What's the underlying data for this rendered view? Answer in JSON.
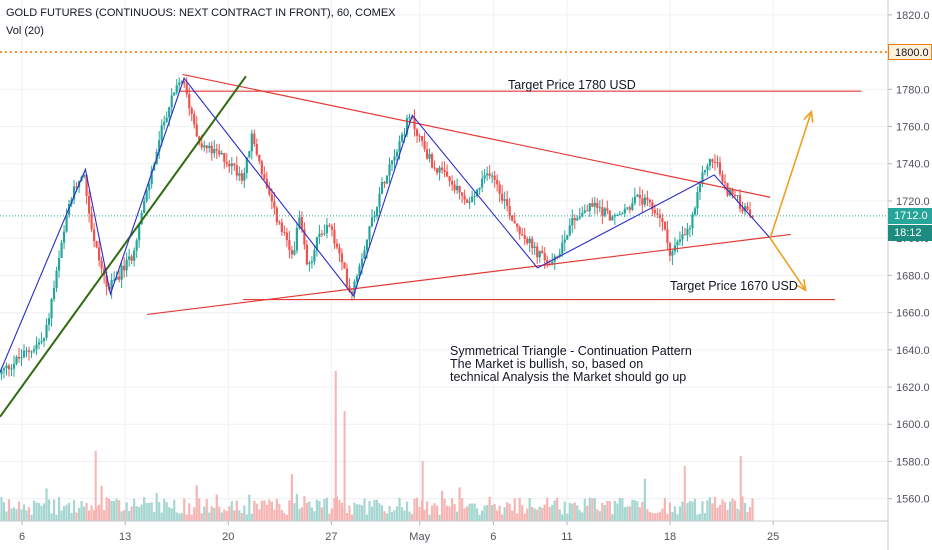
{
  "header": {
    "title": "GOLD FUTURES (CONTINUOUS: NEXT CONTRACT IN FRONT), 60, COMEX",
    "volume_label": "Vol (20)"
  },
  "annotations": {
    "target_high": "Target Price 1780 USD",
    "target_low": "Target Price 1670 USD",
    "pattern_lines": [
      "Symmetrical Triangle - Continuation Pattern",
      "The Market is bullish, so, based on",
      "technical Analysis the Market should go up"
    ]
  },
  "price_badges": {
    "alert_level": "1800.0",
    "last_price": "1712.0",
    "countdown": "18:12"
  },
  "colors": {
    "up": "#26a69a",
    "down": "#ef5350",
    "trend_red": "#e53935",
    "zigzag_blue": "#2b2bc8",
    "support_green": "#2e6b0f",
    "forecast_orange": "#f0a020",
    "alert_orange": "#f57c00",
    "last_price_teal": "#26a69a",
    "countdown_teal": "#1d8b80"
  },
  "chart_data": {
    "type": "candlestick",
    "timeframe": "60",
    "y_axis_ticks": [
      1560,
      1580,
      1600,
      1620,
      1640,
      1660,
      1680,
      1700,
      1720,
      1740,
      1760,
      1780,
      1800,
      1820
    ],
    "ylim": [
      1548,
      1828
    ],
    "x_axis_ticks": [
      "6",
      "13",
      "20",
      "27",
      "May",
      "6",
      "11",
      "18",
      "25"
    ],
    "x_ticks_day_offset": [
      -1,
      6,
      13,
      20,
      26,
      31,
      36,
      43,
      50
    ],
    "x_domain_days": [
      -2.5,
      57.8
    ],
    "alert_level": 1800,
    "last_price": 1712,
    "price_path": [
      {
        "day": -2.4,
        "price": 1627
      },
      {
        "day": 0.7,
        "price": 1646
      },
      {
        "day": 2.4,
        "price": 1719
      },
      {
        "day": 3.3,
        "price": 1737
      },
      {
        "day": 4.0,
        "price": 1700
      },
      {
        "day": 5.0,
        "price": 1672
      },
      {
        "day": 6.6,
        "price": 1690
      },
      {
        "day": 7.6,
        "price": 1723
      },
      {
        "day": 8.9,
        "price": 1766
      },
      {
        "day": 10.0,
        "price": 1786
      },
      {
        "day": 11.3,
        "price": 1750
      },
      {
        "day": 12.9,
        "price": 1743
      },
      {
        "day": 14.2,
        "price": 1733
      },
      {
        "day": 14.8,
        "price": 1755
      },
      {
        "day": 16.0,
        "price": 1720
      },
      {
        "day": 17.5,
        "price": 1690
      },
      {
        "day": 18.0,
        "price": 1710
      },
      {
        "day": 18.6,
        "price": 1682
      },
      {
        "day": 19.3,
        "price": 1701
      },
      {
        "day": 20.0,
        "price": 1708
      },
      {
        "day": 20.8,
        "price": 1688
      },
      {
        "day": 21.5,
        "price": 1670
      },
      {
        "day": 23.0,
        "price": 1712
      },
      {
        "day": 24.0,
        "price": 1738
      },
      {
        "day": 25.5,
        "price": 1765
      },
      {
        "day": 27.0,
        "price": 1740
      },
      {
        "day": 28.2,
        "price": 1730
      },
      {
        "day": 29.5,
        "price": 1718
      },
      {
        "day": 31.0,
        "price": 1737
      },
      {
        "day": 32.5,
        "price": 1710
      },
      {
        "day": 34.0,
        "price": 1693
      },
      {
        "day": 35.2,
        "price": 1685
      },
      {
        "day": 36.5,
        "price": 1710
      },
      {
        "day": 38.0,
        "price": 1718
      },
      {
        "day": 39.5,
        "price": 1710
      },
      {
        "day": 41.0,
        "price": 1722
      },
      {
        "day": 42.5,
        "price": 1712
      },
      {
        "day": 43.2,
        "price": 1692
      },
      {
        "day": 44.5,
        "price": 1705
      },
      {
        "day": 45.6,
        "price": 1740
      },
      {
        "day": 46.3,
        "price": 1742
      },
      {
        "day": 46.8,
        "price": 1728
      },
      {
        "day": 47.6,
        "price": 1722
      },
      {
        "day": 48.3,
        "price": 1714
      },
      {
        "day": 48.7,
        "price": 1712
      }
    ],
    "volume_spikes": [
      {
        "day": 4.0,
        "value": 70
      },
      {
        "day": 20.3,
        "value": 150
      },
      {
        "day": 20.9,
        "value": 110
      },
      {
        "day": 26.2,
        "value": 60
      },
      {
        "day": 44.0,
        "value": 55
      },
      {
        "day": 47.8,
        "value": 65
      }
    ],
    "drawings": {
      "triangle_upper": [
        {
          "day": 9.9,
          "price": 1788
        },
        {
          "day": 49.8,
          "price": 1722
        }
      ],
      "triangle_lower": [
        {
          "day": 7.5,
          "price": 1659
        },
        {
          "day": 51.2,
          "price": 1702
        }
      ],
      "target_line_high": {
        "price": 1779,
        "from_day": 9.7,
        "to_day": 56.0
      },
      "target_line_low": {
        "price": 1667,
        "from_day": 14.0,
        "to_day": 54.2
      },
      "support_trend": [
        {
          "day": -2.5,
          "price": 1604
        },
        {
          "day": 14.2,
          "price": 1787
        }
      ],
      "zigzag": [
        {
          "day": -2.5,
          "price": 1628
        },
        {
          "day": 3.3,
          "price": 1737
        },
        {
          "day": 5.0,
          "price": 1670
        },
        {
          "day": 10.0,
          "price": 1786
        },
        {
          "day": 21.5,
          "price": 1669
        },
        {
          "day": 25.5,
          "price": 1766
        },
        {
          "day": 34.0,
          "price": 1684
        },
        {
          "day": 46.0,
          "price": 1734
        },
        {
          "day": 49.8,
          "price": 1700
        }
      ],
      "forecast_up": [
        {
          "day": 49.8,
          "price": 1700
        },
        {
          "day": 52.6,
          "price": 1768
        }
      ],
      "forecast_down": [
        {
          "day": 49.8,
          "price": 1700
        },
        {
          "day": 52.2,
          "price": 1672
        }
      ]
    }
  }
}
